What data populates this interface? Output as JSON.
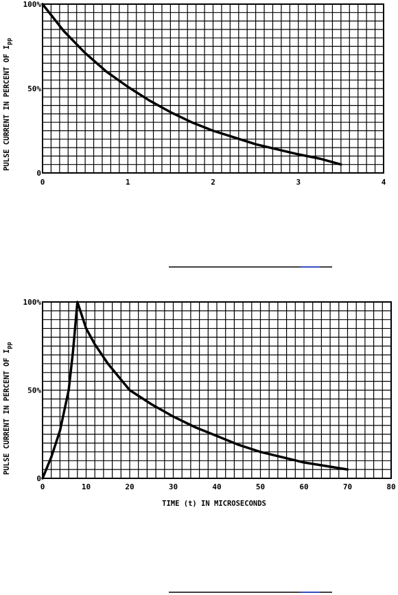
{
  "chart_data": [
    {
      "type": "line",
      "ylabel": "PULSE CURRENT IN PERCENT OF I",
      "ylabel_subscript": "pp",
      "xlabel": "",
      "xlim": [
        0,
        4
      ],
      "ylim": [
        0,
        100
      ],
      "x_ticks": [
        "0",
        "1",
        "2",
        "3",
        "4"
      ],
      "y_ticks": [
        "0",
        "50%",
        "100%"
      ],
      "grid": true,
      "series": [
        {
          "x": [
            0,
            0.25,
            0.5,
            0.75,
            1.0,
            1.25,
            1.5,
            1.75,
            2.0,
            2.25,
            2.5,
            2.75,
            3.0,
            3.25,
            3.5
          ],
          "y": [
            100,
            84,
            71,
            60,
            51,
            43,
            36,
            30,
            25,
            21,
            17,
            14,
            11,
            8.5,
            5
          ]
        }
      ]
    },
    {
      "type": "line",
      "ylabel": "PULSE CURRENT IN PERCENT OF I",
      "ylabel_subscript": "pp",
      "xlabel": "TIME (t) IN MICROSECONDS",
      "xlim": [
        0,
        80
      ],
      "ylim": [
        0,
        100
      ],
      "x_ticks": [
        "0",
        "10",
        "20",
        "30",
        "40",
        "50",
        "60",
        "70",
        "80"
      ],
      "y_ticks": [
        "0",
        "50%",
        "100%"
      ],
      "grid": true,
      "series": [
        {
          "x": [
            0,
            2,
            4,
            6,
            7,
            8,
            10,
            12,
            15,
            20,
            25,
            30,
            35,
            40,
            45,
            50,
            55,
            60,
            65,
            70
          ],
          "y": [
            0,
            12,
            27,
            50,
            72,
            100,
            85,
            76,
            65,
            50,
            42,
            35,
            29,
            24,
            19,
            15,
            12,
            9,
            7,
            5
          ]
        }
      ]
    }
  ]
}
